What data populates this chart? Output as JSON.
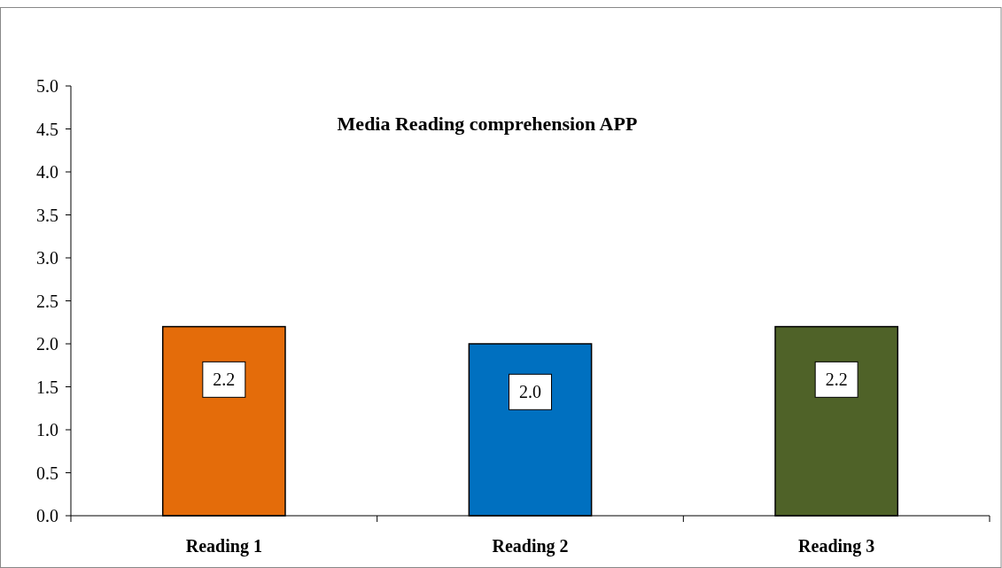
{
  "chart_data": {
    "type": "bar",
    "title": "Media Reading comprehension APP",
    "categories": [
      "Reading 1",
      "Reading 2",
      "Reading 3"
    ],
    "values": [
      2.2,
      2.0,
      2.2
    ],
    "colors": [
      "#e46c0a",
      "#0070c0",
      "#4f6228"
    ],
    "value_labels": [
      "2.2",
      "2.0",
      "2.2"
    ],
    "ylim": [
      0,
      5
    ],
    "yticks": [
      {
        "value": 0,
        "label": "0.0"
      },
      {
        "value": 0.5,
        "label": "0.5"
      },
      {
        "value": 1,
        "label": "1.0"
      },
      {
        "value": 1.5,
        "label": "1.5"
      },
      {
        "value": 2,
        "label": "2.0"
      },
      {
        "value": 2.5,
        "label": "2.5"
      },
      {
        "value": 3,
        "label": "3.0"
      },
      {
        "value": 3.5,
        "label": "3.5"
      },
      {
        "value": 4,
        "label": "4.0"
      },
      {
        "value": 4.5,
        "label": "4.5"
      },
      {
        "value": 5,
        "label": "5.0"
      }
    ],
    "grid": false
  }
}
